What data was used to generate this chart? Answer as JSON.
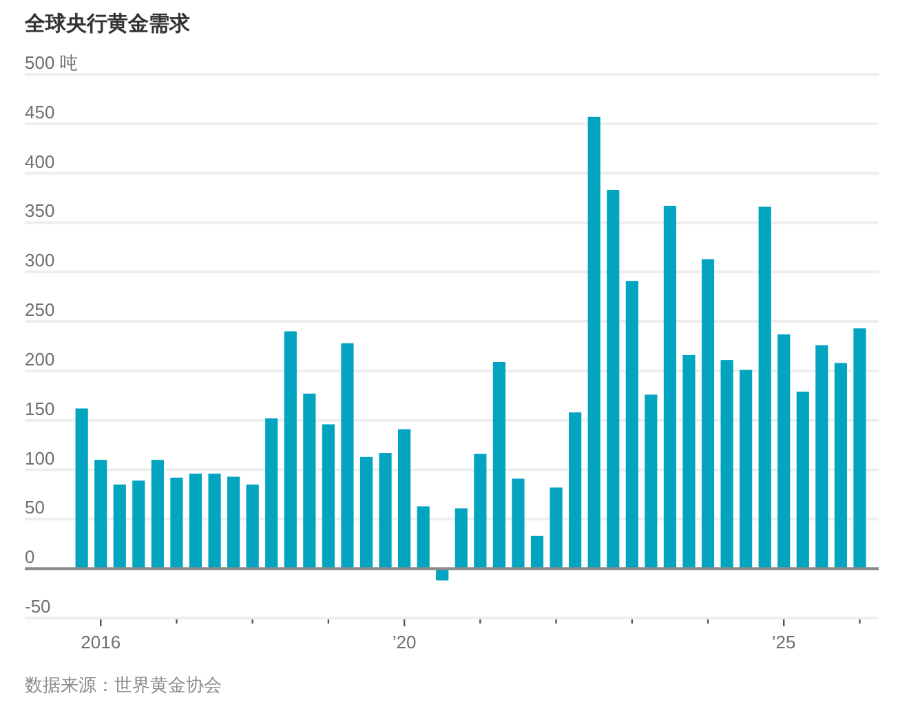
{
  "chart_data": {
    "type": "bar",
    "title": "全球央行黄金需求",
    "x": [
      "2015-10",
      "2016-01",
      "2016-04",
      "2016-07",
      "2016-10",
      "2017-01",
      "2017-04",
      "2017-07",
      "2017-10",
      "2018-01",
      "2018-04",
      "2018-07",
      "2018-10",
      "2019-01",
      "2019-04",
      "2019-07",
      "2019-10",
      "2020-01",
      "2020-04",
      "2020-07",
      "2020-10",
      "2021-01",
      "2021-04",
      "2021-07",
      "2021-10",
      "2022-01",
      "2022-04",
      "2022-07",
      "2022-10",
      "2023-01",
      "2023-04",
      "2023-07",
      "2023-10",
      "2024-01",
      "2024-04",
      "2024-07",
      "2024-10",
      "2025-01",
      "2025-04",
      "2025-07",
      "2025-10",
      "2026-01"
    ],
    "values": [
      162,
      110,
      85,
      89,
      110,
      92,
      96,
      96,
      93,
      85,
      152,
      240,
      177,
      146,
      228,
      113,
      117,
      141,
      63,
      -12,
      61,
      116,
      209,
      91,
      33,
      82,
      158,
      457,
      383,
      291,
      176,
      367,
      216,
      313,
      211,
      201,
      366,
      237,
      179,
      226,
      208,
      243
    ],
    "color": "#02a4c0",
    "xlim": [
      "2015-01",
      "2026-04"
    ],
    "xticks": [
      {
        "value": "2016-01",
        "label": "2016"
      },
      {
        "value": "2017-01",
        "label": null
      },
      {
        "value": "2018-01",
        "label": null
      },
      {
        "value": "2019-01",
        "label": null
      },
      {
        "value": "2020-01",
        "label": "’20"
      },
      {
        "value": "2021-01",
        "label": null
      },
      {
        "value": "2022-01",
        "label": null
      },
      {
        "value": "2023-01",
        "label": null
      },
      {
        "value": "2024-01",
        "label": null
      },
      {
        "value": "2025-01",
        "label": "’25"
      },
      {
        "value": "2026-01",
        "label": null
      }
    ],
    "ylim": [
      -50,
      500
    ],
    "yticks": [
      -50,
      0,
      50,
      100,
      150,
      200,
      250,
      300,
      350,
      400,
      450,
      {
        "value": 500,
        "label": "500 吨"
      }
    ],
    "grid": "y",
    "annotations": [
      "数据来源：世界黄金协会"
    ]
  }
}
